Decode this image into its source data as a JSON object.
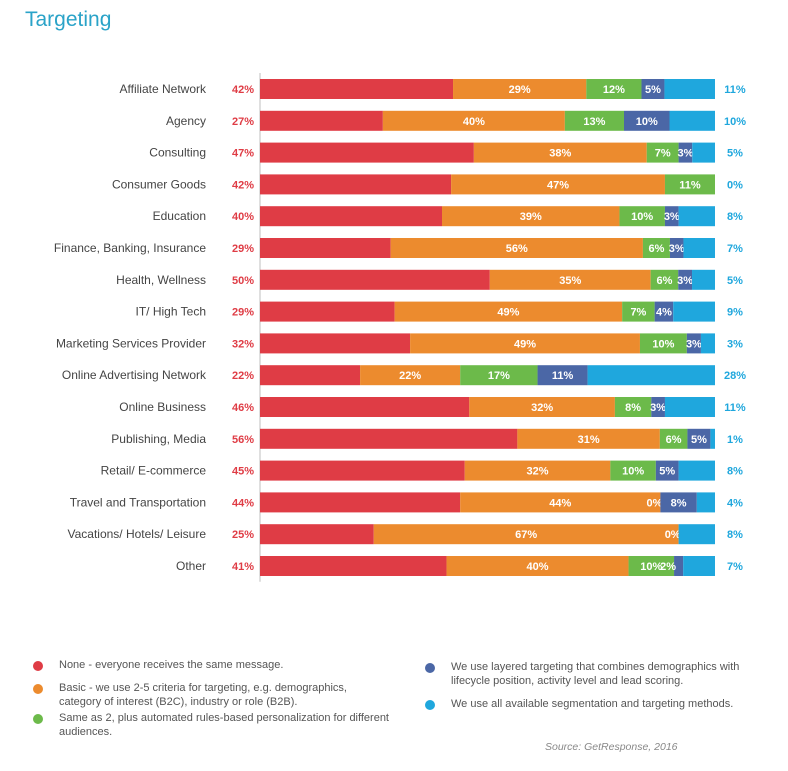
{
  "chart_data": {
    "type": "bar",
    "orientation": "horizontal-stacked-100",
    "title": "Targeting",
    "categories": [
      "Affiliate Network",
      "Agency",
      "Consulting",
      "Consumer Goods",
      "Education",
      "Finance, Banking, Insurance",
      "Health, Wellness",
      "IT/ High Tech",
      "Marketing Services Provider",
      "Online Advertising Network",
      "Online Business",
      "Publishing, Media",
      "Retail/ E-commerce",
      "Travel and Transportation",
      "Vacations/ Hotels/ Leisure",
      "Other"
    ],
    "series": [
      {
        "name": "None - everyone receives the same message.",
        "color": "#df3c45",
        "values": [
          42,
          27,
          47,
          42,
          40,
          29,
          50,
          29,
          32,
          22,
          46,
          56,
          45,
          44,
          25,
          41
        ]
      },
      {
        "name": "Basic - we use 2-5 criteria for targeting, e.g.  demographics, category of interest (B2C), industry or role (B2B).",
        "color": "#ec8b2e",
        "values": [
          29,
          40,
          38,
          47,
          39,
          56,
          35,
          49,
          49,
          22,
          32,
          31,
          32,
          44,
          67,
          40
        ]
      },
      {
        "name": "Same as 2, plus automated rules-based personalization for different audiences.",
        "color": "#6cba4a",
        "values": [
          12,
          13,
          7,
          11,
          10,
          6,
          6,
          7,
          10,
          17,
          8,
          6,
          10,
          0,
          0,
          10
        ]
      },
      {
        "name": "We use layered targeting that combines demographics with lifecycle position, activity level and lead scoring.",
        "color": "#4b67a6",
        "values": [
          5,
          10,
          3,
          null,
          3,
          3,
          3,
          4,
          3,
          11,
          3,
          5,
          5,
          8,
          null,
          2
        ]
      },
      {
        "name": "We use all available segmentation and targeting methods.",
        "color": "#1fa7dd",
        "values": [
          11,
          10,
          5,
          0,
          8,
          7,
          5,
          9,
          3,
          28,
          11,
          1,
          8,
          4,
          8,
          7
        ]
      }
    ],
    "label_text": [
      [
        "42%",
        "29%",
        "12%",
        "5%",
        "11%"
      ],
      [
        "27%",
        "40%",
        "13%",
        "10%",
        "10%"
      ],
      [
        "47%",
        "38%",
        "7%",
        "3%",
        "5%"
      ],
      [
        "42%",
        "47%",
        "11%",
        "",
        "0%"
      ],
      [
        "40%",
        "39%",
        "10%",
        "3%",
        "8%"
      ],
      [
        "29%",
        "56%",
        "6%",
        "3%",
        "7%"
      ],
      [
        "50%",
        "35%",
        "6%",
        "3%",
        "5%"
      ],
      [
        "29%",
        "49%",
        "7%",
        "4%",
        "9%"
      ],
      [
        "32%",
        "49%",
        "10%",
        "3%",
        "3%"
      ],
      [
        "22%",
        "22%",
        "17%",
        "11%",
        "28%"
      ],
      [
        "46%",
        "32%",
        "8%",
        "3%",
        "11%"
      ],
      [
        "56%",
        "31%",
        "6%",
        "5%",
        "1%"
      ],
      [
        "45%",
        "32%",
        "10%",
        "5%",
        "8%"
      ],
      [
        "44%",
        "44%",
        "0%",
        "8%",
        "4%"
      ],
      [
        "25%",
        "67%",
        "0%",
        "",
        "8%"
      ],
      [
        "41%",
        "40%",
        "10%",
        "2%",
        "7%"
      ]
    ]
  },
  "source": "Source: GetResponse, 2016"
}
